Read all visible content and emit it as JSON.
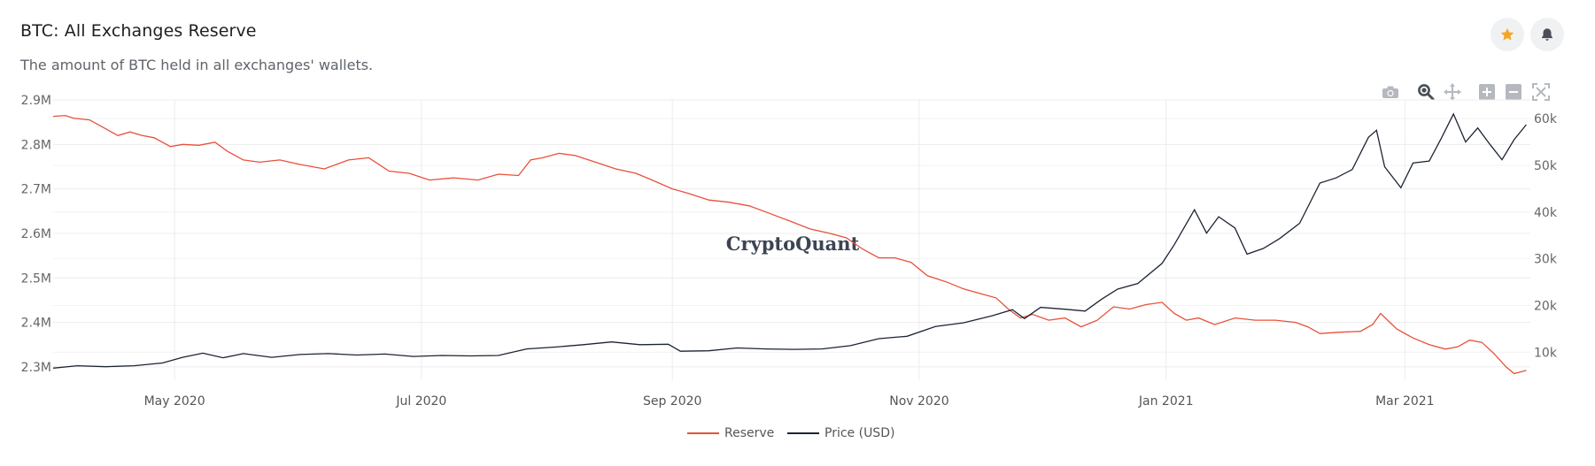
{
  "header": {
    "title": "BTC: All Exchanges Reserve",
    "subtitle": "The amount of BTC held in all exchanges' wallets."
  },
  "actions": {
    "favorite_icon": "star-icon",
    "notify_icon": "bell-icon"
  },
  "toolbar": {
    "icons": [
      "camera-icon",
      "zoom-icon",
      "pan-icon",
      "zoom-in-icon",
      "zoom-out-icon",
      "reset-axes-icon"
    ]
  },
  "watermark": "CryptoQuant",
  "colors": {
    "reserve": "#e8503a",
    "price": "#1c2433",
    "star": "#f5a623"
  },
  "legend": {
    "reserve": "Reserve",
    "price": "Price (USD)"
  },
  "chart_data": {
    "type": "line",
    "title": "BTC: All Exchanges Reserve",
    "x_tick_labels": [
      "May 2020",
      "Jul 2020",
      "Sep 2020",
      "Nov 2020",
      "Jan 2021",
      "Mar 2021"
    ],
    "x_tick_dates": [
      "2020-05-01",
      "2020-07-01",
      "2020-09-01",
      "2020-11-01",
      "2021-01-01",
      "2021-03-01"
    ],
    "xlim": [
      "2020-04-01",
      "2021-04-01"
    ],
    "y_left": {
      "ylim": [
        2.27,
        2.9
      ],
      "ticks": [
        2.3,
        2.4,
        2.5,
        2.6,
        2.7,
        2.8,
        2.9
      ],
      "tick_labels": [
        "2.3M",
        "2.4M",
        "2.5M",
        "2.6M",
        "2.7M",
        "2.8M",
        "2.9M"
      ]
    },
    "y_right": {
      "ylim": [
        4000,
        64000
      ],
      "ticks": [
        10000,
        20000,
        30000,
        40000,
        50000,
        60000
      ],
      "tick_labels": [
        "10k",
        "20k",
        "30k",
        "40k",
        "50k",
        "60k"
      ]
    },
    "grid": true,
    "legend_position": "bottom-center",
    "series": [
      {
        "name": "Reserve",
        "axis": "left",
        "unit": "M BTC",
        "points": [
          [
            "2020-04-01",
            2.863
          ],
          [
            "2020-04-04",
            2.865
          ],
          [
            "2020-04-06",
            2.859
          ],
          [
            "2020-04-10",
            2.855
          ],
          [
            "2020-04-14",
            2.835
          ],
          [
            "2020-04-17",
            2.82
          ],
          [
            "2020-04-20",
            2.828
          ],
          [
            "2020-04-23",
            2.82
          ],
          [
            "2020-04-26",
            2.815
          ],
          [
            "2020-04-30",
            2.795
          ],
          [
            "2020-05-03",
            2.8
          ],
          [
            "2020-05-07",
            2.798
          ],
          [
            "2020-05-11",
            2.805
          ],
          [
            "2020-05-14",
            2.785
          ],
          [
            "2020-05-18",
            2.765
          ],
          [
            "2020-05-22",
            2.76
          ],
          [
            "2020-05-27",
            2.765
          ],
          [
            "2020-06-01",
            2.755
          ],
          [
            "2020-06-07",
            2.745
          ],
          [
            "2020-06-13",
            2.765
          ],
          [
            "2020-06-18",
            2.77
          ],
          [
            "2020-06-23",
            2.74
          ],
          [
            "2020-06-28",
            2.735
          ],
          [
            "2020-07-03",
            2.72
          ],
          [
            "2020-07-09",
            2.725
          ],
          [
            "2020-07-15",
            2.72
          ],
          [
            "2020-07-20",
            2.733
          ],
          [
            "2020-07-25",
            2.73
          ],
          [
            "2020-07-28",
            2.765
          ],
          [
            "2020-07-31",
            2.77
          ],
          [
            "2020-08-04",
            2.78
          ],
          [
            "2020-08-08",
            2.775
          ],
          [
            "2020-08-13",
            2.76
          ],
          [
            "2020-08-18",
            2.745
          ],
          [
            "2020-08-23",
            2.735
          ],
          [
            "2020-08-27",
            2.72
          ],
          [
            "2020-09-01",
            2.7
          ],
          [
            "2020-09-05",
            2.69
          ],
          [
            "2020-09-10",
            2.675
          ],
          [
            "2020-09-15",
            2.67
          ],
          [
            "2020-09-20",
            2.662
          ],
          [
            "2020-09-25",
            2.645
          ],
          [
            "2020-09-30",
            2.628
          ],
          [
            "2020-10-05",
            2.61
          ],
          [
            "2020-10-10",
            2.6
          ],
          [
            "2020-10-14",
            2.59
          ],
          [
            "2020-10-18",
            2.565
          ],
          [
            "2020-10-22",
            2.545
          ],
          [
            "2020-10-26",
            2.545
          ],
          [
            "2020-10-30",
            2.535
          ],
          [
            "2020-11-03",
            2.505
          ],
          [
            "2020-11-08",
            2.49
          ],
          [
            "2020-11-12",
            2.475
          ],
          [
            "2020-11-16",
            2.465
          ],
          [
            "2020-11-20",
            2.455
          ],
          [
            "2020-11-23",
            2.43
          ],
          [
            "2020-11-26",
            2.41
          ],
          [
            "2020-11-29",
            2.418
          ],
          [
            "2020-12-03",
            2.405
          ],
          [
            "2020-12-07",
            2.41
          ],
          [
            "2020-12-11",
            2.39
          ],
          [
            "2020-12-15",
            2.405
          ],
          [
            "2020-12-19",
            2.435
          ],
          [
            "2020-12-23",
            2.43
          ],
          [
            "2020-12-27",
            2.44
          ],
          [
            "2020-12-31",
            2.445
          ],
          [
            "2021-01-03",
            2.42
          ],
          [
            "2021-01-06",
            2.405
          ],
          [
            "2021-01-09",
            2.41
          ],
          [
            "2021-01-13",
            2.395
          ],
          [
            "2021-01-18",
            2.41
          ],
          [
            "2021-01-23",
            2.405
          ],
          [
            "2021-01-28",
            2.405
          ],
          [
            "2021-02-02",
            2.4
          ],
          [
            "2021-02-05",
            2.39
          ],
          [
            "2021-02-08",
            2.375
          ],
          [
            "2021-02-13",
            2.378
          ],
          [
            "2021-02-18",
            2.38
          ],
          [
            "2021-02-21",
            2.395
          ],
          [
            "2021-02-23",
            2.42
          ],
          [
            "2021-02-27",
            2.385
          ],
          [
            "2021-03-03",
            2.365
          ],
          [
            "2021-03-07",
            2.35
          ],
          [
            "2021-03-11",
            2.34
          ],
          [
            "2021-03-14",
            2.345
          ],
          [
            "2021-03-17",
            2.36
          ],
          [
            "2021-03-20",
            2.355
          ],
          [
            "2021-03-23",
            2.33
          ],
          [
            "2021-03-26",
            2.3
          ],
          [
            "2021-03-28",
            2.285
          ],
          [
            "2021-03-31",
            2.292
          ]
        ]
      },
      {
        "name": "Price (USD)",
        "axis": "right",
        "unit": "USD",
        "points": [
          [
            "2020-04-01",
            6600
          ],
          [
            "2020-04-07",
            7100
          ],
          [
            "2020-04-14",
            6900
          ],
          [
            "2020-04-21",
            7100
          ],
          [
            "2020-04-28",
            7700
          ],
          [
            "2020-05-03",
            8900
          ],
          [
            "2020-05-08",
            9800
          ],
          [
            "2020-05-13",
            8800
          ],
          [
            "2020-05-18",
            9700
          ],
          [
            "2020-05-25",
            8900
          ],
          [
            "2020-06-01",
            9500
          ],
          [
            "2020-06-08",
            9700
          ],
          [
            "2020-06-15",
            9400
          ],
          [
            "2020-06-22",
            9600
          ],
          [
            "2020-06-29",
            9100
          ],
          [
            "2020-07-06",
            9300
          ],
          [
            "2020-07-13",
            9200
          ],
          [
            "2020-07-20",
            9300
          ],
          [
            "2020-07-27",
            10700
          ],
          [
            "2020-08-03",
            11100
          ],
          [
            "2020-08-10",
            11600
          ],
          [
            "2020-08-17",
            12200
          ],
          [
            "2020-08-24",
            11600
          ],
          [
            "2020-08-31",
            11700
          ],
          [
            "2020-09-03",
            10200
          ],
          [
            "2020-09-10",
            10300
          ],
          [
            "2020-09-17",
            10900
          ],
          [
            "2020-09-24",
            10700
          ],
          [
            "2020-10-01",
            10600
          ],
          [
            "2020-10-08",
            10700
          ],
          [
            "2020-10-15",
            11400
          ],
          [
            "2020-10-22",
            12900
          ],
          [
            "2020-10-29",
            13400
          ],
          [
            "2020-11-05",
            15500
          ],
          [
            "2020-11-12",
            16300
          ],
          [
            "2020-11-19",
            17800
          ],
          [
            "2020-11-24",
            19100
          ],
          [
            "2020-11-27",
            17200
          ],
          [
            "2020-12-01",
            19600
          ],
          [
            "2020-12-07",
            19200
          ],
          [
            "2020-12-12",
            18800
          ],
          [
            "2020-12-16",
            21300
          ],
          [
            "2020-12-20",
            23500
          ],
          [
            "2020-12-25",
            24700
          ],
          [
            "2020-12-31",
            29000
          ],
          [
            "2021-01-03",
            33000
          ],
          [
            "2021-01-08",
            40500
          ],
          [
            "2021-01-11",
            35500
          ],
          [
            "2021-01-14",
            39000
          ],
          [
            "2021-01-18",
            36600
          ],
          [
            "2021-01-21",
            31000
          ],
          [
            "2021-01-25",
            32200
          ],
          [
            "2021-01-29",
            34300
          ],
          [
            "2021-02-03",
            37600
          ],
          [
            "2021-02-08",
            46200
          ],
          [
            "2021-02-12",
            47300
          ],
          [
            "2021-02-16",
            49100
          ],
          [
            "2021-02-20",
            56000
          ],
          [
            "2021-02-22",
            57500
          ],
          [
            "2021-02-24",
            49700
          ],
          [
            "2021-02-28",
            45200
          ],
          [
            "2021-03-03",
            50500
          ],
          [
            "2021-03-07",
            50900
          ],
          [
            "2021-03-10",
            55800
          ],
          [
            "2021-03-13",
            61000
          ],
          [
            "2021-03-16",
            55000
          ],
          [
            "2021-03-19",
            58000
          ],
          [
            "2021-03-22",
            54500
          ],
          [
            "2021-03-25",
            51200
          ],
          [
            "2021-03-28",
            55500
          ],
          [
            "2021-03-31",
            58700
          ]
        ]
      }
    ]
  }
}
